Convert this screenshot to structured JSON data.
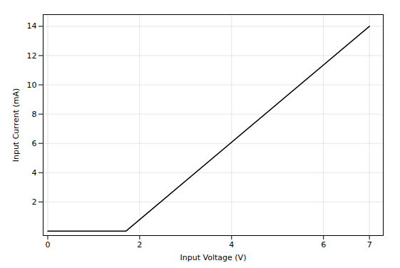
{
  "chart_data": {
    "type": "line",
    "x": [
      0,
      1.7,
      7.0
    ],
    "values": [
      0,
      0,
      14.0
    ],
    "xlim": [
      -0.1,
      7.3
    ],
    "ylim": [
      -0.3,
      14.8
    ],
    "xticks": [
      0,
      2,
      4,
      6,
      7
    ],
    "yticks": [
      2,
      4,
      6,
      8,
      10,
      12,
      14
    ],
    "xlabel": "Input Voltage (V)",
    "ylabel": "Input Current (mA)",
    "grid": true
  }
}
